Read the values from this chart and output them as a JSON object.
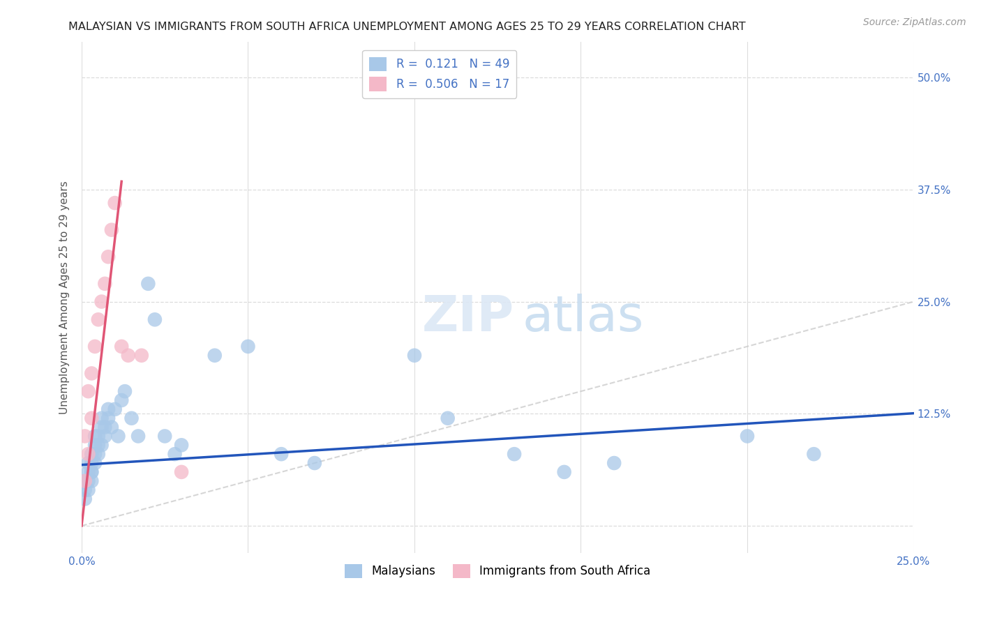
{
  "title": "MALAYSIAN VS IMMIGRANTS FROM SOUTH AFRICA UNEMPLOYMENT AMONG AGES 25 TO 29 YEARS CORRELATION CHART",
  "source": "Source: ZipAtlas.com",
  "ylabel": "Unemployment Among Ages 25 to 29 years",
  "xlim": [
    0.0,
    0.25
  ],
  "ylim": [
    -0.03,
    0.54
  ],
  "yticks_right": [
    0.0,
    0.125,
    0.25,
    0.375,
    0.5
  ],
  "yticklabels_right": [
    "",
    "12.5%",
    "25.0%",
    "37.5%",
    "50.0%"
  ],
  "malaysians_x": [
    0.001,
    0.001,
    0.001,
    0.002,
    0.002,
    0.002,
    0.002,
    0.003,
    0.003,
    0.003,
    0.003,
    0.003,
    0.004,
    0.004,
    0.004,
    0.004,
    0.005,
    0.005,
    0.005,
    0.006,
    0.006,
    0.006,
    0.007,
    0.007,
    0.008,
    0.008,
    0.009,
    0.01,
    0.011,
    0.012,
    0.013,
    0.015,
    0.017,
    0.02,
    0.022,
    0.025,
    0.028,
    0.03,
    0.04,
    0.05,
    0.06,
    0.07,
    0.1,
    0.11,
    0.13,
    0.145,
    0.16,
    0.2,
    0.22
  ],
  "malaysians_y": [
    0.04,
    0.05,
    0.03,
    0.06,
    0.05,
    0.04,
    0.07,
    0.06,
    0.07,
    0.05,
    0.08,
    0.06,
    0.07,
    0.08,
    0.09,
    0.1,
    0.08,
    0.09,
    0.1,
    0.09,
    0.11,
    0.12,
    0.1,
    0.11,
    0.12,
    0.13,
    0.11,
    0.13,
    0.1,
    0.14,
    0.15,
    0.12,
    0.1,
    0.27,
    0.23,
    0.1,
    0.08,
    0.09,
    0.19,
    0.2,
    0.08,
    0.07,
    0.19,
    0.12,
    0.08,
    0.06,
    0.07,
    0.1,
    0.08
  ],
  "south_africa_x": [
    0.001,
    0.001,
    0.002,
    0.002,
    0.003,
    0.003,
    0.004,
    0.005,
    0.006,
    0.007,
    0.008,
    0.009,
    0.01,
    0.012,
    0.014,
    0.018,
    0.03
  ],
  "south_africa_y": [
    0.05,
    0.1,
    0.08,
    0.15,
    0.12,
    0.17,
    0.2,
    0.23,
    0.25,
    0.27,
    0.3,
    0.33,
    0.36,
    0.2,
    0.19,
    0.19,
    0.06
  ],
  "blue_scatter_color": "#a8c8e8",
  "pink_scatter_color": "#f4b8c8",
  "blue_line_color": "#2255bb",
  "pink_line_color": "#e05575",
  "diag_line_color": "#cccccc",
  "grid_color": "#dddddd",
  "r_malaysian": "0.121",
  "n_malaysian": "49",
  "r_southafrica": "0.506",
  "n_southafrica": "17",
  "legend_label_malaysian": "Malaysians",
  "legend_label_southafrica": "Immigrants from South Africa",
  "background_color": "#ffffff",
  "title_fontsize": 11.5,
  "axis_label_fontsize": 11,
  "tick_fontsize": 11,
  "source_fontsize": 10,
  "blue_line_intercept": 0.068,
  "blue_line_slope": 0.23,
  "pink_line_intercept": 0.0,
  "pink_line_slope": 32.0,
  "pink_line_xmax": 0.012
}
